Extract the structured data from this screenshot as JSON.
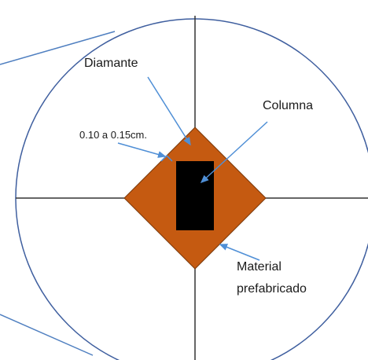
{
  "labels": {
    "diamante": "Diamante",
    "columna": "Columna",
    "gap": "0.10 a 0.15cm.",
    "material_line1": "Material",
    "material_line2": "prefabricado"
  },
  "colors": {
    "circle_stroke": "#3f5f9f",
    "cross_lines": "#333333",
    "diamond_fill": "#c55a11",
    "column_fill": "#000000",
    "arrow": "#4f8fd6",
    "side_lines": "#4f7fc0"
  }
}
